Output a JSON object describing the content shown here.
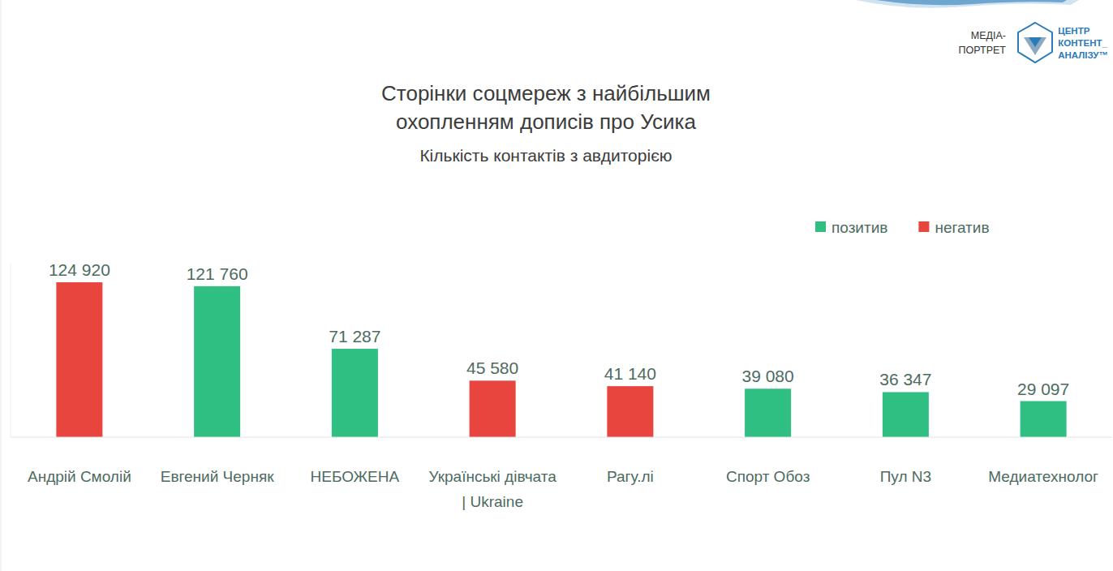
{
  "chart_data": {
    "type": "bar",
    "title": "Сторінки соцмереж з найбільшим охопленням дописів про Усика",
    "subtitle": "Кількість контактів з авдиторією",
    "categories": [
      "Андрій Смолій",
      "Евгений Черняк",
      "НЕБОЖЕНА",
      "Українські дівчата | Ukraine",
      "Рагу.лі",
      "Спорт Обоз",
      "Пул N3",
      "Медиатехнолог"
    ],
    "series": [
      {
        "name": "позитив",
        "color": "#2fbf82",
        "values": [
          null,
          121760,
          71287,
          null,
          null,
          39080,
          36347,
          29097
        ],
        "value_labels": [
          null,
          "121 760",
          "71 287",
          null,
          null,
          "39 080",
          "36 347",
          "29 097"
        ]
      },
      {
        "name": "негатив",
        "color": "#e8453e",
        "values": [
          124920,
          null,
          null,
          45580,
          41140,
          null,
          null,
          null
        ],
        "value_labels": [
          "124 920",
          null,
          null,
          "45 580",
          "41 140",
          null,
          null,
          null
        ]
      }
    ],
    "ylim": [
      0,
      140000
    ],
    "stacked": true,
    "data_labels": true,
    "tick_labels": "x",
    "grid": false,
    "legend": "upper right"
  },
  "branding": {
    "left": [
      "МЕДІА-",
      "ПОРТРЕТ"
    ],
    "right": [
      "ЦЕНТР",
      "КОНТЕНТ_",
      "АНАЛІЗУ™"
    ]
  }
}
